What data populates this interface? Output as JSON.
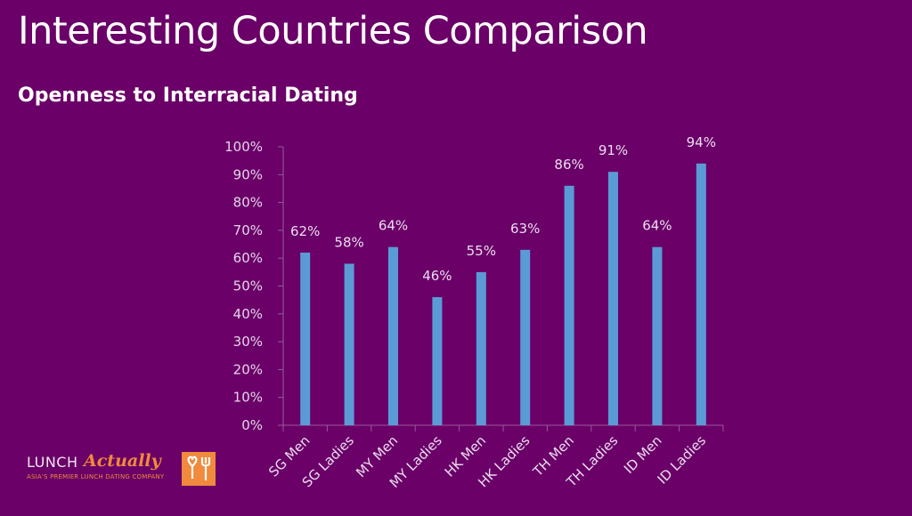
{
  "slide": {
    "title": "Interesting Countries Comparison",
    "subtitle": "Openness to Interracial Dating"
  },
  "logo": {
    "brand_part1": "LUNCH",
    "brand_part2": "Actually",
    "tagline": "ASIA'S PREMIER LUNCH DATING COMPANY",
    "icon": "heart-fork-icon"
  },
  "colors": {
    "background": "#6a0068",
    "bar": "#5b9bd5",
    "axis": "#9a5a9c",
    "logo_accent": "#f08a3c"
  },
  "chart_data": {
    "type": "bar",
    "title": "Openness to Interracial Dating",
    "xlabel": "",
    "ylabel": "",
    "categories": [
      "SG Men",
      "SG Ladies",
      "MY Men",
      "MY Ladies",
      "HK Men",
      "HK Ladies",
      "TH Men",
      "TH Ladies",
      "ID Men",
      "ID Ladies"
    ],
    "values": [
      62,
      58,
      64,
      46,
      55,
      63,
      86,
      91,
      64,
      94
    ],
    "data_labels": [
      "62%",
      "58%",
      "64%",
      "46%",
      "55%",
      "63%",
      "86%",
      "91%",
      "64%",
      "94%"
    ],
    "ylim": [
      0,
      100
    ],
    "yticks": [
      0,
      10,
      20,
      30,
      40,
      50,
      60,
      70,
      80,
      90,
      100
    ],
    "ytick_labels": [
      "0%",
      "10%",
      "20%",
      "30%",
      "40%",
      "50%",
      "60%",
      "70%",
      "80%",
      "90%",
      "100%"
    ],
    "grid": false,
    "legend": "none"
  }
}
